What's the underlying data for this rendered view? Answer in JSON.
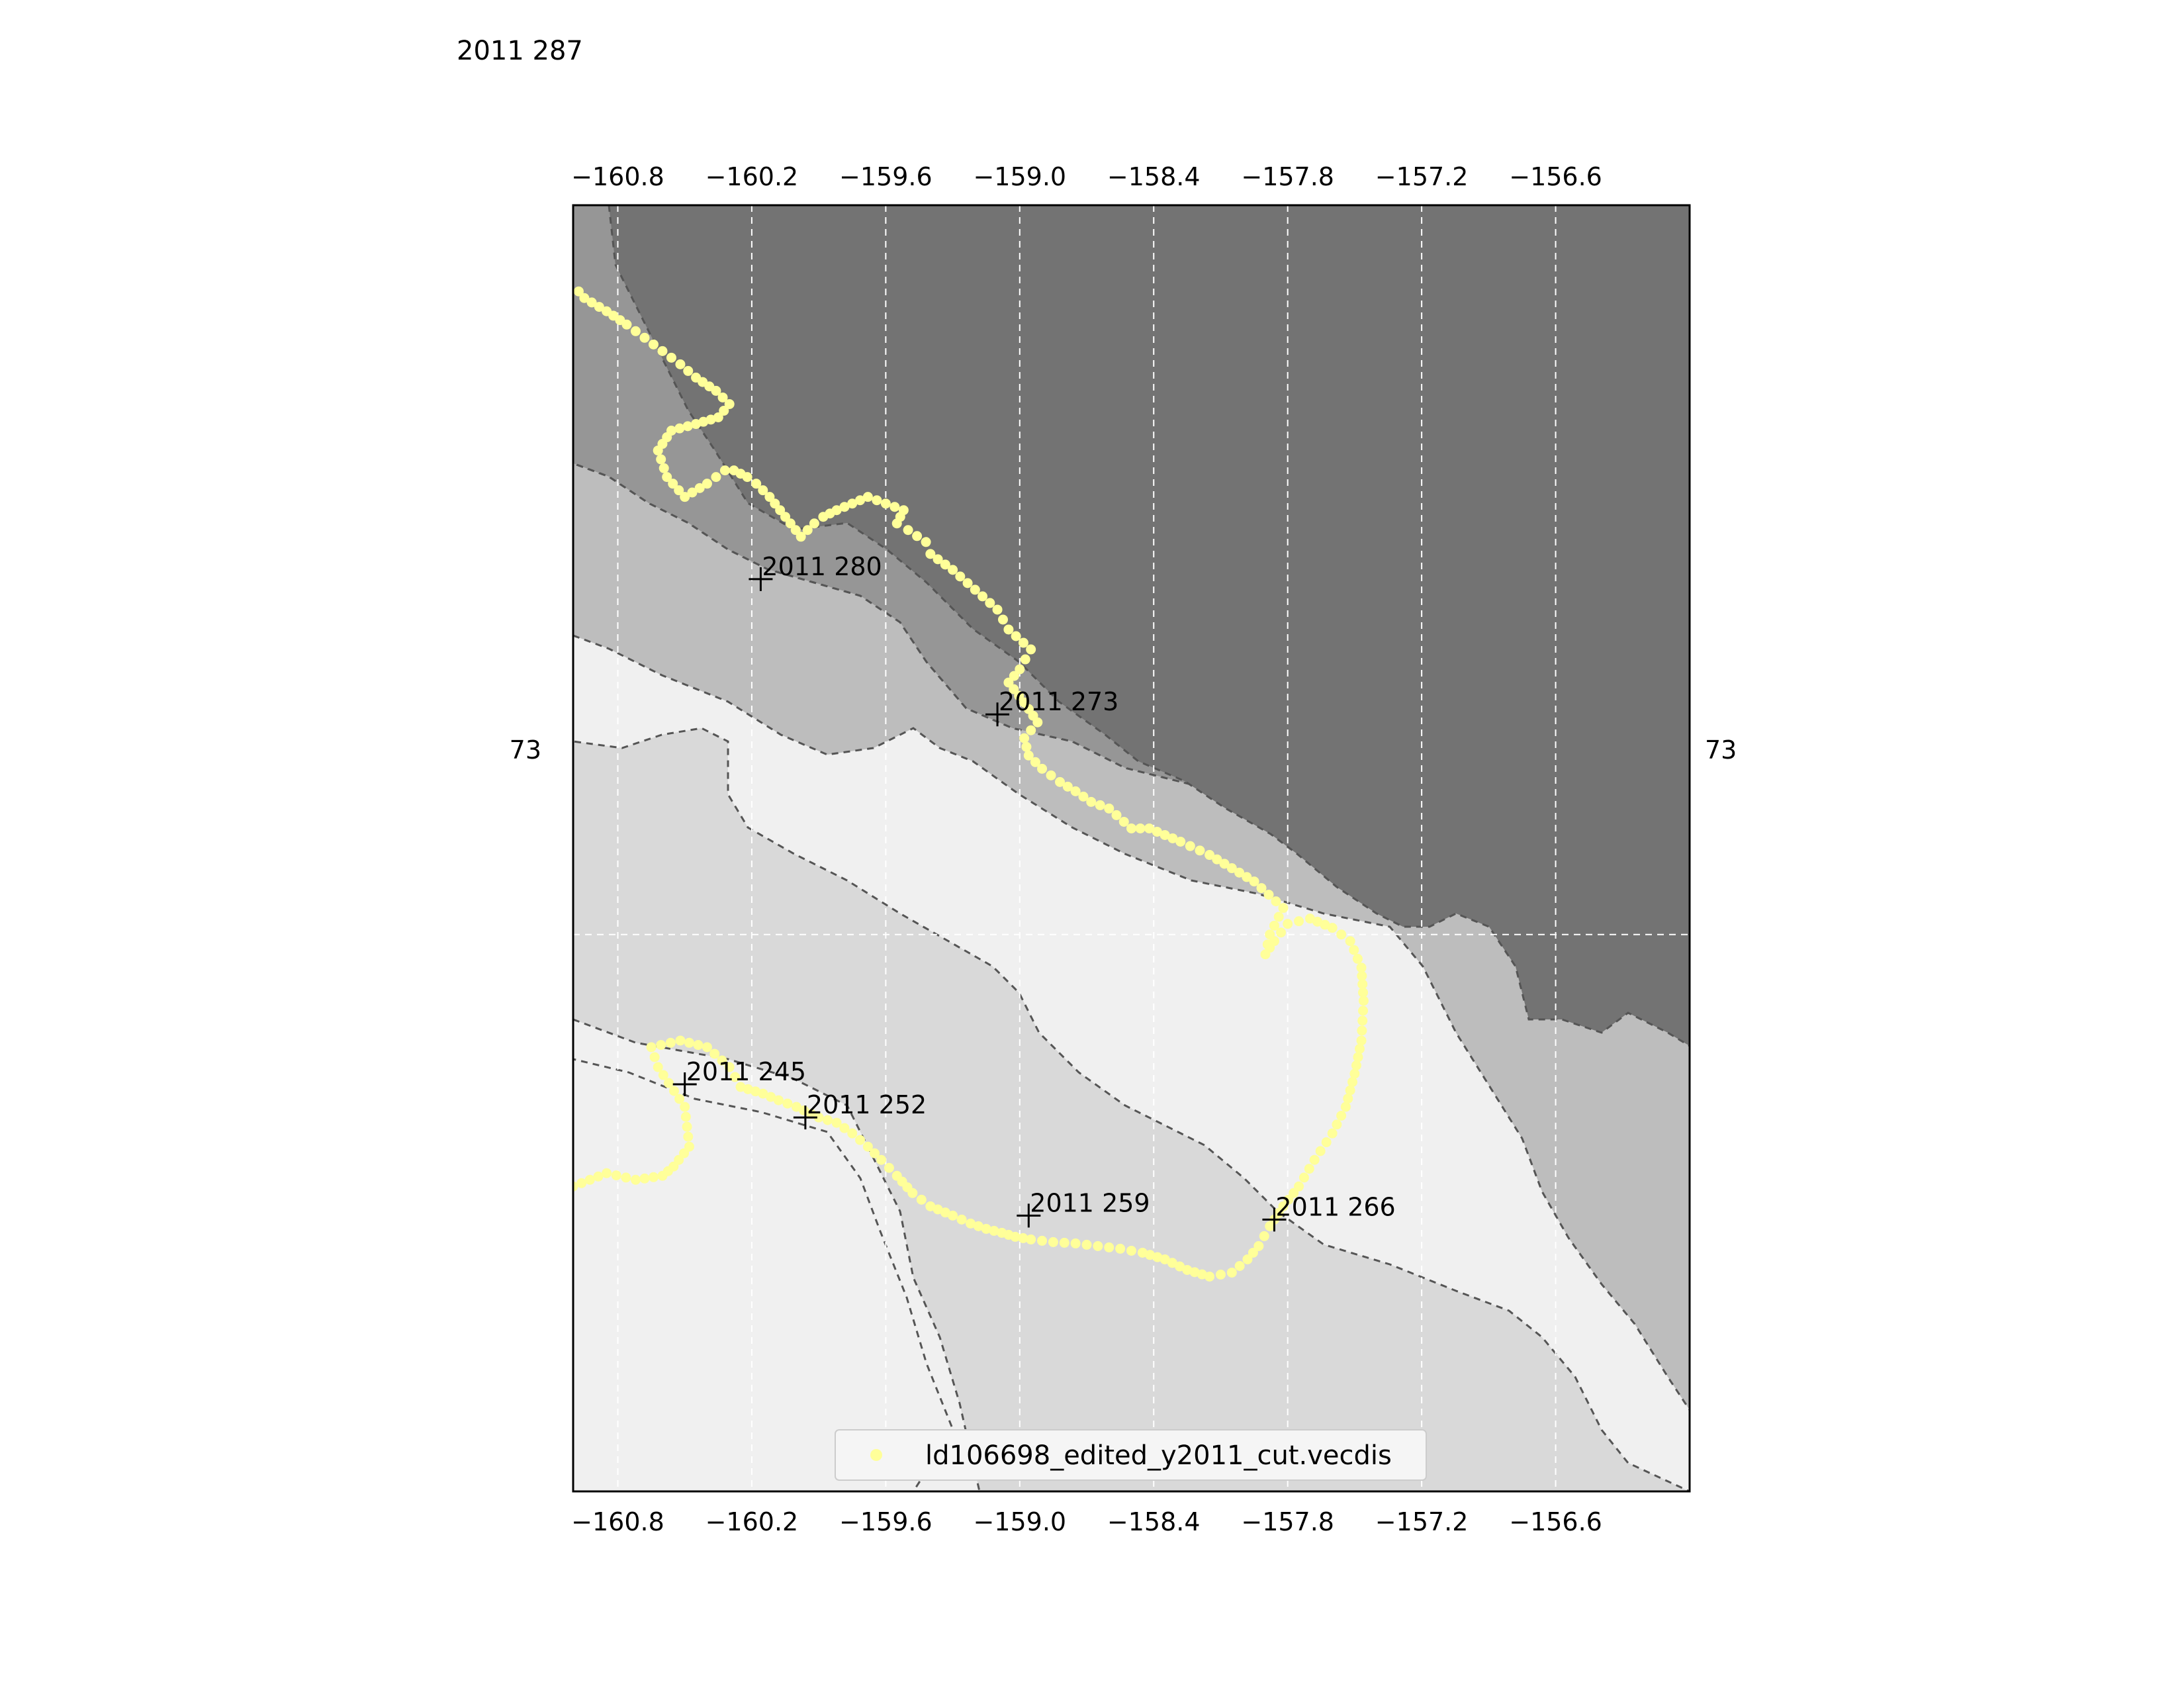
{
  "title": "2011 287",
  "map": {
    "lon_ticks": [
      "−160.8",
      "−160.2",
      "−159.6",
      "−159.0",
      "−158.4",
      "−157.8",
      "−157.2",
      "−156.6"
    ],
    "lon_values": [
      -160.8,
      -160.2,
      -159.6,
      -159.0,
      -158.4,
      -157.8,
      -157.2,
      -156.6
    ],
    "lat_label": "73",
    "depth_shades": [
      "#f0f0f0",
      "#d9d9d9",
      "#bdbdbd",
      "#969696",
      "#737373"
    ],
    "track_color": "#ffff99",
    "grid": true
  },
  "chart_data": {
    "type": "scatter",
    "series": [
      {
        "name": "ld106698_edited_y2011_cut.vecdis",
        "color": "#ffff99",
        "lon": [
          -161.0,
          -160.85,
          -160.72,
          -160.6,
          -160.55,
          -160.48,
          -160.5,
          -160.62,
          -160.65,
          -160.52,
          -160.4,
          -160.3,
          -160.25,
          -160.15,
          -160.08,
          -160.0,
          -159.9,
          -159.82,
          -159.75,
          -159.68,
          -159.62,
          -159.55,
          -159.48,
          -159.4,
          -159.3,
          -159.22,
          -159.15,
          -159.08,
          -159.02,
          -158.95,
          -158.85,
          -158.75,
          -158.65,
          -158.55,
          -158.45,
          -158.35,
          -158.25,
          -158.15,
          -158.05,
          -157.98,
          -157.93,
          -157.88,
          -157.82,
          -157.75,
          -157.68,
          -157.6,
          -157.54,
          -157.5,
          -157.47,
          -157.46,
          -157.47,
          -157.52,
          -157.6,
          -157.7,
          -157.8,
          -157.86,
          -157.9,
          -157.88,
          -157.82,
          -157.95,
          -158.05,
          -158.15,
          -158.28,
          -158.42,
          -158.5,
          -158.6,
          -158.68,
          -158.75,
          -158.82,
          -158.9,
          -158.96,
          -158.98,
          -158.92,
          -158.98,
          -159.05,
          -159.0,
          -158.95,
          -159.05,
          -159.1,
          -159.2,
          -159.3,
          -159.4,
          -159.42,
          -159.5,
          -159.55,
          -159.52,
          -159.6,
          -159.68,
          -159.75,
          -159.82,
          -159.88,
          -159.92,
          -159.95,
          -159.98,
          -160.05,
          -160.12,
          -160.18,
          -160.22,
          -160.28,
          -160.32,
          -160.4,
          -160.5,
          -160.58,
          -160.62,
          -160.56,
          -160.45,
          -160.35,
          -160.3,
          -160.36,
          -160.45,
          -160.52,
          -160.6,
          -160.68,
          -160.76,
          -160.85,
          -160.95,
          -161.0
        ],
        "lat": [
          72.81,
          72.82,
          72.815,
          72.818,
          72.825,
          72.84,
          72.87,
          72.9,
          72.915,
          72.92,
          72.915,
          72.9,
          72.885,
          72.88,
          72.875,
          72.87,
          72.862,
          72.858,
          72.85,
          72.84,
          72.83,
          72.818,
          72.805,
          72.795,
          72.788,
          72.782,
          72.778,
          72.775,
          72.772,
          72.77,
          72.768,
          72.767,
          72.765,
          72.763,
          72.76,
          72.755,
          72.747,
          72.742,
          72.745,
          72.755,
          72.765,
          72.78,
          72.795,
          72.81,
          72.83,
          72.85,
          72.87,
          72.895,
          72.92,
          72.95,
          72.975,
          72.995,
          73.005,
          73.012,
          73.008,
          72.995,
          72.985,
          73.0,
          73.02,
          73.04,
          73.05,
          73.06,
          73.07,
          73.08,
          73.08,
          73.095,
          73.1,
          73.108,
          73.115,
          73.125,
          73.135,
          73.148,
          73.16,
          73.175,
          73.19,
          73.2,
          73.215,
          73.23,
          73.245,
          73.26,
          73.275,
          73.287,
          73.296,
          73.305,
          73.31,
          73.32,
          73.325,
          73.33,
          73.325,
          73.32,
          73.315,
          73.31,
          73.305,
          73.3,
          73.315,
          73.33,
          73.34,
          73.345,
          73.35,
          73.35,
          73.34,
          73.33,
          73.345,
          73.365,
          73.38,
          73.385,
          73.39,
          73.4,
          73.41,
          73.42,
          73.43,
          73.44,
          73.45,
          73.46,
          73.47,
          73.48,
          73.49
        ]
      }
    ],
    "markers": [
      {
        "label": "2011 245",
        "lon": -160.5,
        "lat": 72.887
      },
      {
        "label": "2011 252",
        "lon": -159.96,
        "lat": 72.862
      },
      {
        "label": "2011 259",
        "lon": -158.96,
        "lat": 72.788
      },
      {
        "label": "2011 266",
        "lon": -157.86,
        "lat": 72.785
      },
      {
        "label": "2011 273",
        "lon": -159.1,
        "lat": 73.166
      },
      {
        "label": "2011 280",
        "lon": -160.16,
        "lat": 73.268
      }
    ],
    "xlim": [
      -161.0,
      -156.0
    ],
    "ylim": [
      72.58,
      73.55
    ],
    "legend_position": "lower-center",
    "grid": true
  }
}
